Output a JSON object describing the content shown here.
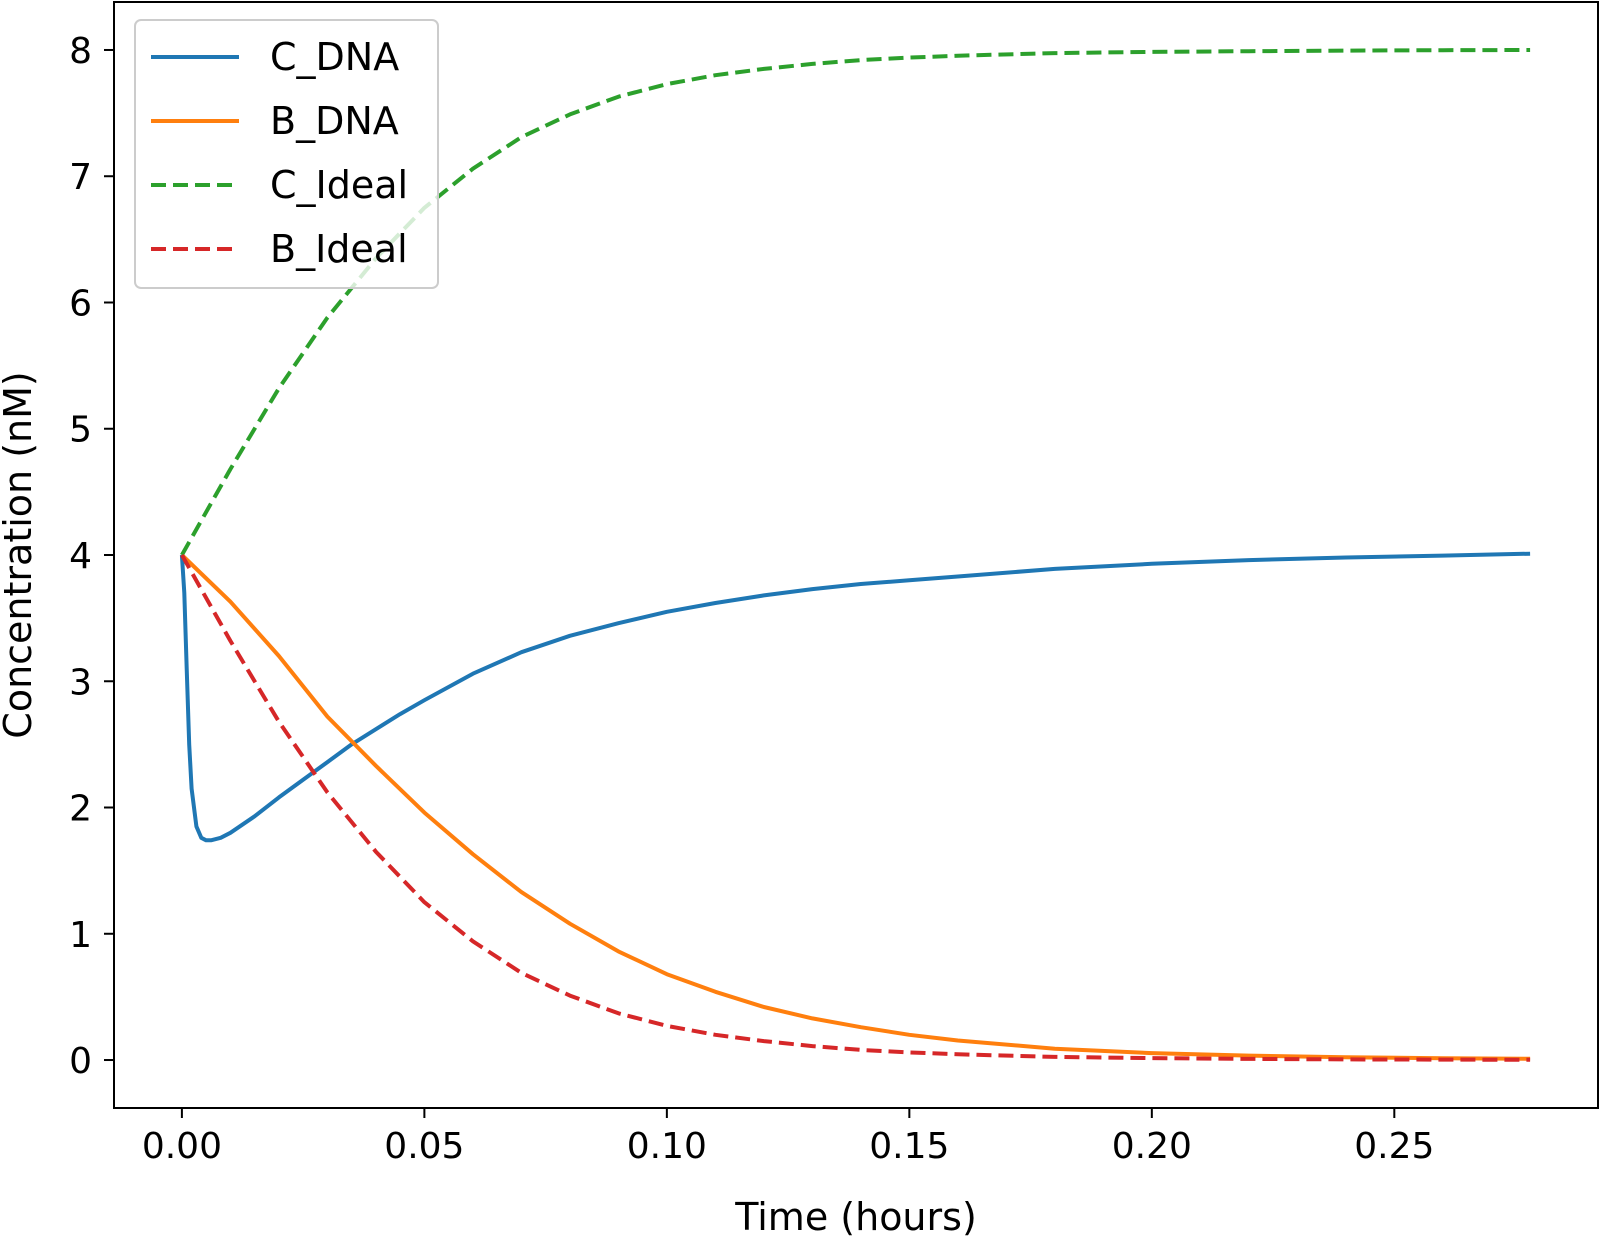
{
  "chart_data": {
    "type": "line",
    "title": "",
    "xlabel": "Time (hours)",
    "ylabel": "Concentration (nM)",
    "xlim": [
      -0.014,
      0.292
    ],
    "ylim": [
      -0.38,
      8.38
    ],
    "xticks": [
      0.0,
      0.05,
      0.1,
      0.15,
      0.2,
      0.25
    ],
    "xtick_labels": [
      "0.00",
      "0.05",
      "0.10",
      "0.15",
      "0.20",
      "0.25"
    ],
    "yticks": [
      0,
      1,
      2,
      3,
      4,
      5,
      6,
      7,
      8
    ],
    "ytick_labels": [
      "0",
      "1",
      "2",
      "3",
      "4",
      "5",
      "6",
      "7",
      "8"
    ],
    "grid": false,
    "legend_position": "upper-left",
    "series": [
      {
        "name": "C_DNA",
        "color": "#1f77b4",
        "dash": "solid",
        "x": [
          0,
          0.0005,
          0.001,
          0.0015,
          0.002,
          0.003,
          0.004,
          0.005,
          0.006,
          0.008,
          0.01,
          0.015,
          0.02,
          0.025,
          0.03,
          0.035,
          0.04,
          0.045,
          0.05,
          0.06,
          0.07,
          0.08,
          0.09,
          0.1,
          0.11,
          0.12,
          0.13,
          0.14,
          0.15,
          0.16,
          0.18,
          0.2,
          0.22,
          0.24,
          0.26,
          0.278
        ],
        "y": [
          4.0,
          3.7,
          3.1,
          2.5,
          2.15,
          1.85,
          1.76,
          1.74,
          1.74,
          1.76,
          1.8,
          1.93,
          2.08,
          2.22,
          2.36,
          2.5,
          2.62,
          2.74,
          2.85,
          3.06,
          3.23,
          3.36,
          3.46,
          3.55,
          3.62,
          3.68,
          3.73,
          3.77,
          3.8,
          3.83,
          3.89,
          3.93,
          3.96,
          3.98,
          3.995,
          4.01
        ]
      },
      {
        "name": "B_DNA",
        "color": "#ff7f0e",
        "dash": "solid",
        "x": [
          0,
          0.01,
          0.02,
          0.03,
          0.04,
          0.05,
          0.06,
          0.07,
          0.08,
          0.09,
          0.1,
          0.11,
          0.12,
          0.13,
          0.14,
          0.15,
          0.16,
          0.18,
          0.2,
          0.22,
          0.24,
          0.26,
          0.278
        ],
        "y": [
          4.0,
          3.63,
          3.2,
          2.72,
          2.33,
          1.96,
          1.63,
          1.33,
          1.08,
          0.86,
          0.68,
          0.54,
          0.42,
          0.33,
          0.26,
          0.2,
          0.155,
          0.09,
          0.055,
          0.035,
          0.022,
          0.014,
          0.01
        ]
      },
      {
        "name": "C_Ideal",
        "color": "#2ca02c",
        "dash": "dashed",
        "x": [
          0,
          0.01,
          0.02,
          0.03,
          0.04,
          0.05,
          0.06,
          0.07,
          0.08,
          0.09,
          0.1,
          0.11,
          0.12,
          0.13,
          0.14,
          0.15,
          0.16,
          0.18,
          0.2,
          0.22,
          0.24,
          0.26,
          0.278
        ],
        "y": [
          4.0,
          4.68,
          5.32,
          5.88,
          6.35,
          6.75,
          7.06,
          7.31,
          7.49,
          7.63,
          7.73,
          7.8,
          7.85,
          7.89,
          7.92,
          7.94,
          7.955,
          7.975,
          7.985,
          7.99,
          7.995,
          7.998,
          8.0
        ]
      },
      {
        "name": "B_Ideal",
        "color": "#d62728",
        "dash": "dashed",
        "x": [
          0,
          0.01,
          0.02,
          0.03,
          0.04,
          0.05,
          0.06,
          0.07,
          0.08,
          0.09,
          0.1,
          0.11,
          0.12,
          0.13,
          0.14,
          0.15,
          0.16,
          0.18,
          0.2,
          0.22,
          0.24,
          0.26,
          0.278
        ],
        "y": [
          4.0,
          3.32,
          2.68,
          2.12,
          1.65,
          1.25,
          0.94,
          0.69,
          0.51,
          0.37,
          0.27,
          0.2,
          0.15,
          0.11,
          0.08,
          0.06,
          0.045,
          0.025,
          0.015,
          0.009,
          0.005,
          0.003,
          0.002
        ]
      }
    ]
  }
}
